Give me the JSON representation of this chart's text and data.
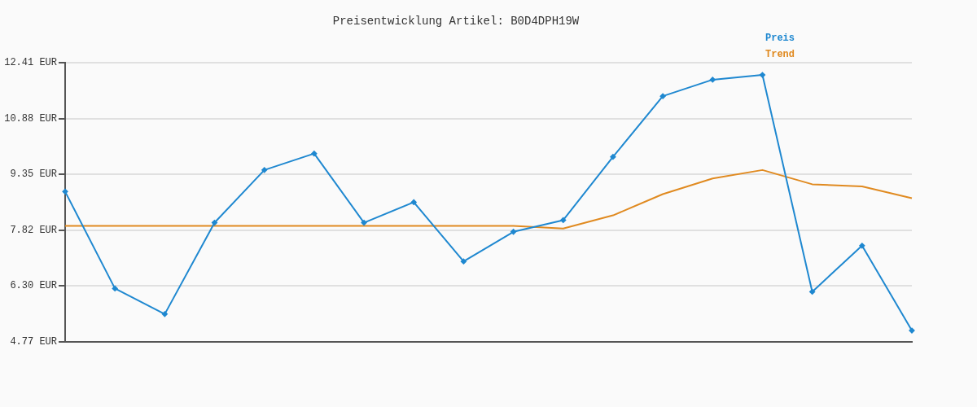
{
  "chart_data": {
    "type": "line",
    "title": "Preisentwicklung Artikel: B0D4DPH19W",
    "categories": [
      null,
      null,
      null,
      null,
      null,
      null,
      null,
      null,
      null,
      null,
      null,
      null,
      null,
      null,
      null,
      null,
      null,
      null
    ],
    "series": [
      {
        "name": "Preis",
        "color": "#1f88d0",
        "marker": "diamond",
        "values": [
          8.88,
          6.23,
          5.53,
          8.03,
          9.47,
          9.92,
          8.03,
          8.59,
          6.97,
          7.78,
          8.1,
          9.83,
          11.49,
          11.94,
          12.07,
          6.14,
          7.4,
          5.08
        ]
      },
      {
        "name": "Trend",
        "color": "#e08a20",
        "marker": "none",
        "values": [
          7.94,
          7.94,
          7.94,
          7.94,
          7.94,
          7.94,
          7.94,
          7.94,
          7.94,
          7.94,
          7.87,
          8.23,
          8.81,
          9.24,
          9.47,
          9.08,
          9.02,
          8.7
        ]
      }
    ],
    "ylim": [
      4.77,
      12.41
    ],
    "yticks": [
      {
        "value": 4.77,
        "label": "4.77 EUR"
      },
      {
        "value": 6.3,
        "label": "6.30 EUR"
      },
      {
        "value": 7.82,
        "label": "7.82 EUR"
      },
      {
        "value": 9.35,
        "label": "9.35 EUR"
      },
      {
        "value": 10.88,
        "label": "10.88 EUR"
      },
      {
        "value": 12.41,
        "label": "12.41 EUR"
      }
    ],
    "tick_labels": "y",
    "grid": "y",
    "legend": "top right",
    "line_style": "solid"
  }
}
